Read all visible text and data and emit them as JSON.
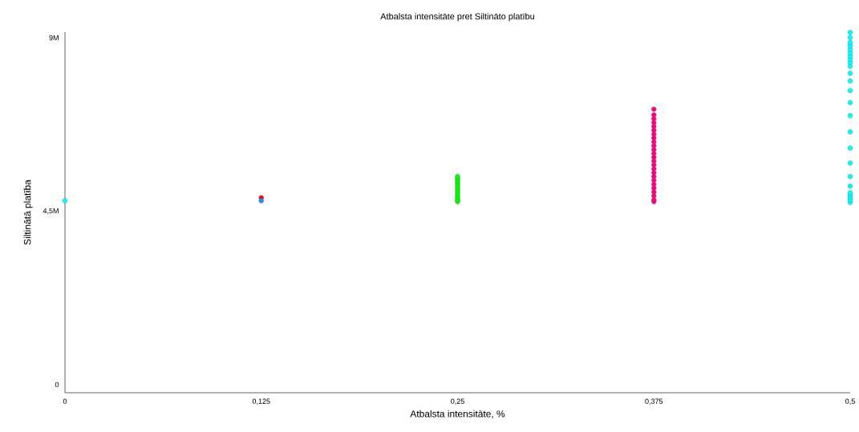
{
  "chart_data": {
    "type": "scatter",
    "title": "Atbalsta intensitāte pret Siltināto platību",
    "xlabel": "Atbalsta intensitāte, %",
    "ylabel": "Siltinātā platība",
    "xlim": [
      0,
      0.5
    ],
    "xticks": [
      {
        "value": 0,
        "label": "0"
      },
      {
        "value": 0.125,
        "label": "0,125"
      },
      {
        "value": 0.25,
        "label": "0,25"
      },
      {
        "value": 0.375,
        "label": "0,375"
      },
      {
        "value": 0.5,
        "label": "0,5"
      }
    ],
    "ylim": [
      -210000,
      9150000
    ],
    "yticks": [
      {
        "value": 0,
        "label": "0"
      },
      {
        "value": 4500000,
        "label": "4,5M"
      },
      {
        "value": 9000000,
        "label": "9M"
      }
    ],
    "grid": false,
    "marker": "circle",
    "series": [
      {
        "color": "#00ffff",
        "x": [
          0
        ],
        "values": [
          4770000
        ]
      },
      {
        "color": "#ff0000",
        "x": [
          0.125
        ],
        "values": [
          4850000
        ]
      },
      {
        "color": "#1e90ff",
        "x": [
          0.125
        ],
        "values": [
          4770000
        ]
      },
      {
        "color": "#00ff00",
        "x": [
          0.25,
          0.25,
          0.25,
          0.25,
          0.25,
          0.25,
          0.25,
          0.25,
          0.25,
          0.25,
          0.25,
          0.25
        ],
        "values": [
          4750000,
          4800000,
          4860000,
          4920000,
          4980000,
          5040000,
          5100000,
          5160000,
          5220000,
          5280000,
          5340000,
          5400000
        ]
      },
      {
        "color": "#ff0080",
        "x": [
          0.375,
          0.375,
          0.375,
          0.375,
          0.375,
          0.375,
          0.375,
          0.375,
          0.375,
          0.375,
          0.375,
          0.375,
          0.375,
          0.375,
          0.375,
          0.375,
          0.375,
          0.375,
          0.375,
          0.375,
          0.375,
          0.375,
          0.375,
          0.375,
          0.375
        ],
        "values": [
          4750000,
          4800000,
          4900000,
          5000000,
          5100000,
          5200000,
          5300000,
          5400000,
          5500000,
          5600000,
          5700000,
          5800000,
          5900000,
          6000000,
          6100000,
          6200000,
          6300000,
          6400000,
          6500000,
          6600000,
          6700000,
          6800000,
          6900000,
          7000000,
          7150000
        ]
      },
      {
        "color": "#00ffff",
        "x": [
          0.5,
          0.5,
          0.5,
          0.5,
          0.5,
          0.5,
          0.5,
          0.5,
          0.5,
          0.5,
          0.5,
          0.5,
          0.5,
          0.5,
          0.5,
          0.5,
          0.5,
          0.5,
          0.5,
          0.5,
          0.5,
          0.5,
          0.5,
          0.5,
          0.5
        ],
        "values": [
          4730000,
          4800000,
          4860000,
          4920000,
          4980000,
          5150000,
          5400000,
          5750000,
          6140000,
          6560000,
          6980000,
          7320000,
          7630000,
          7880000,
          8080000,
          8260000,
          8360000,
          8450000,
          8530000,
          8620000,
          8710000,
          8800000,
          8880000,
          9010000,
          9140000
        ]
      }
    ]
  }
}
